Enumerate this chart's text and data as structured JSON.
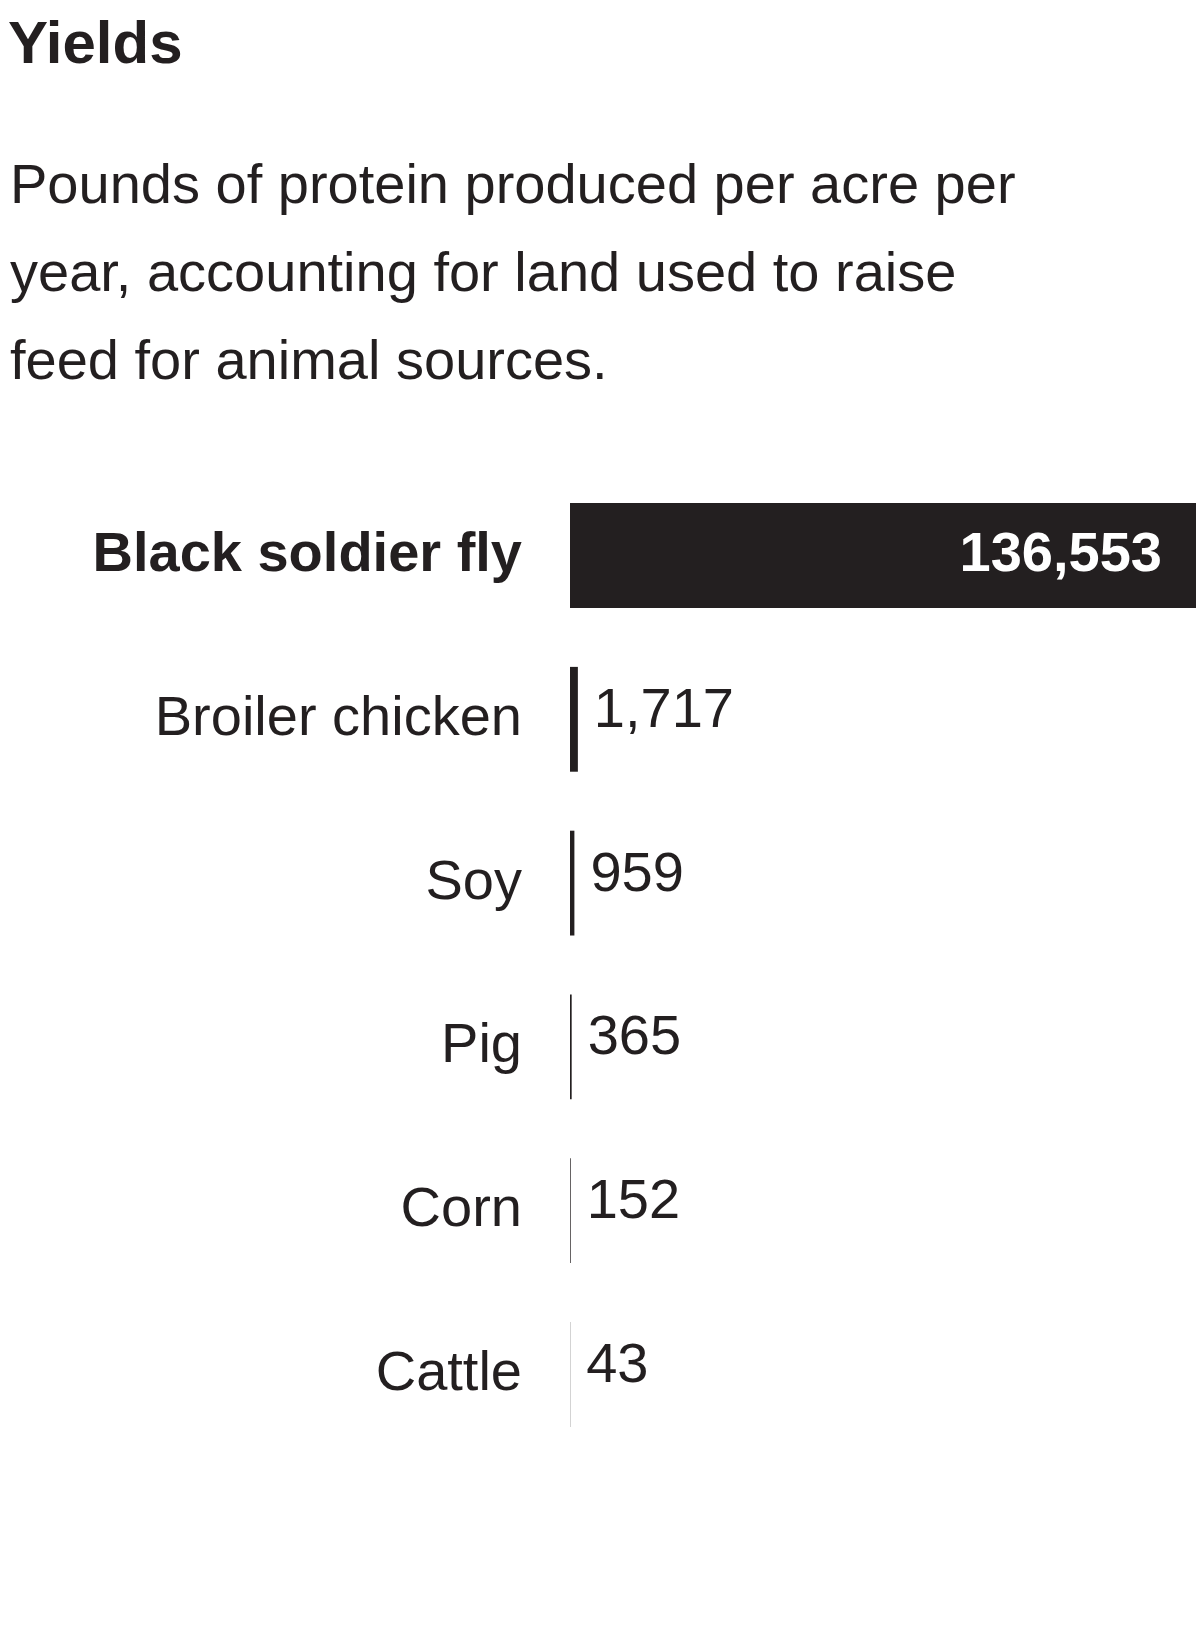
{
  "chart_data": {
    "type": "bar",
    "orientation": "horizontal",
    "title": "Yields",
    "subtitle": "Pounds of protein produced per acre per year, accounting for land used to raise feed for animal sources.",
    "categories": [
      "Black soldier fly",
      "Broiler chicken",
      "Soy",
      "Pig",
      "Corn",
      "Cattle"
    ],
    "values": [
      136553,
      1717,
      959,
      365,
      152,
      43
    ],
    "color": "#231f20",
    "value_labels": [
      "136,553",
      "1,717",
      "959",
      "365",
      "152",
      "43"
    ],
    "grid": false,
    "legend": false
  }
}
